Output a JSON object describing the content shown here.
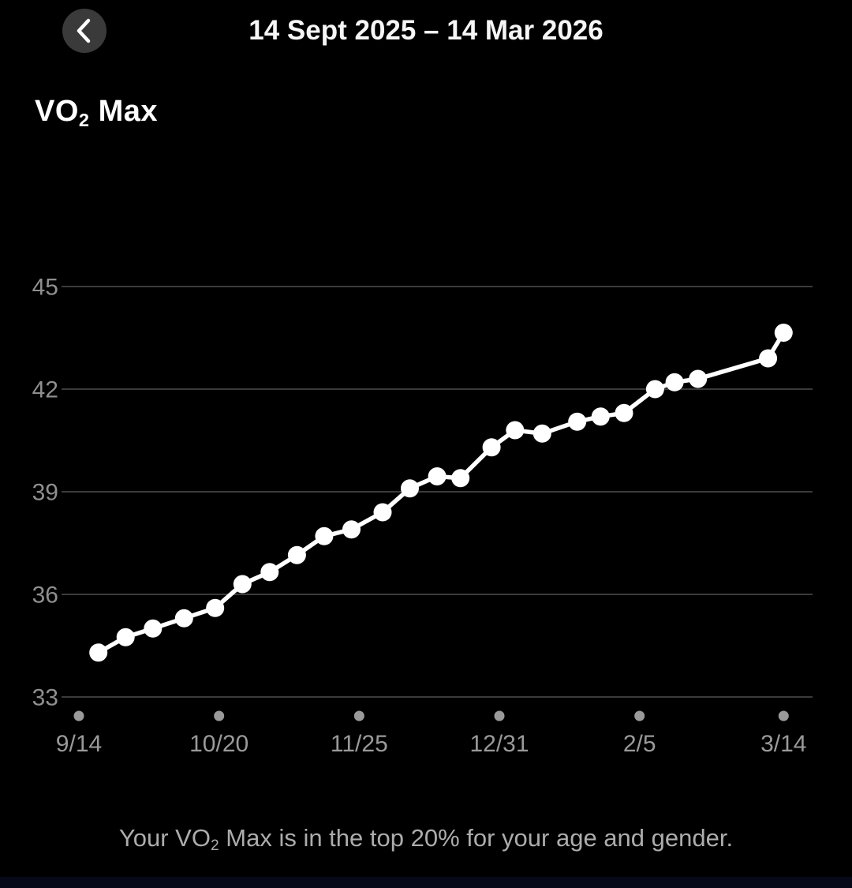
{
  "header": {
    "date_range": "14 Sept 2025 – 14 Mar 2026"
  },
  "title": {
    "pre": "VO",
    "sub": "2",
    "post": " Max"
  },
  "caption": {
    "pre": "Your VO",
    "sub": "2",
    "post": " Max is in the top 20% for your age and gender."
  },
  "colors": {
    "background": "#000000",
    "back_button_bg": "#3a3a3a",
    "header_text": "#f6f6f6",
    "title_text": "#ffffff",
    "gridline": "#3b3b3b",
    "y_label": "#8f8f8f",
    "x_label": "#9a9a9a",
    "x_tick_dot": "#9a9a9a",
    "line": "#ffffff",
    "marker": "#ffffff",
    "caption_text": "#acacac"
  },
  "chart_data": {
    "type": "line",
    "title": "VO2 Max trend",
    "xlabel": "",
    "ylabel": "",
    "grid": true,
    "legend": "none",
    "ylim": [
      33,
      45
    ],
    "y_ticks": [
      33,
      36,
      39,
      42,
      45
    ],
    "x_axis": {
      "tick_labels": [
        "9/14",
        "10/20",
        "11/25",
        "12/31",
        "2/5",
        "3/14"
      ],
      "tick_days": [
        0,
        36,
        72,
        108,
        144,
        181
      ],
      "range_days": [
        0,
        181
      ]
    },
    "points": [
      {
        "x_day": 5,
        "value": 34.3
      },
      {
        "x_day": 12,
        "value": 34.75
      },
      {
        "x_day": 19,
        "value": 35.0
      },
      {
        "x_day": 27,
        "value": 35.3
      },
      {
        "x_day": 35,
        "value": 35.6
      },
      {
        "x_day": 42,
        "value": 36.3
      },
      {
        "x_day": 49,
        "value": 36.65
      },
      {
        "x_day": 56,
        "value": 37.15
      },
      {
        "x_day": 63,
        "value": 37.7
      },
      {
        "x_day": 70,
        "value": 37.9
      },
      {
        "x_day": 78,
        "value": 38.4
      },
      {
        "x_day": 85,
        "value": 39.1
      },
      {
        "x_day": 92,
        "value": 39.45
      },
      {
        "x_day": 98,
        "value": 39.4
      },
      {
        "x_day": 106,
        "value": 40.3
      },
      {
        "x_day": 112,
        "value": 40.8
      },
      {
        "x_day": 119,
        "value": 40.7
      },
      {
        "x_day": 128,
        "value": 41.05
      },
      {
        "x_day": 134,
        "value": 41.2
      },
      {
        "x_day": 140,
        "value": 41.3
      },
      {
        "x_day": 148,
        "value": 42.0
      },
      {
        "x_day": 153,
        "value": 42.2
      },
      {
        "x_day": 159,
        "value": 42.3
      },
      {
        "x_day": 177,
        "value": 42.9
      },
      {
        "x_day": 181,
        "value": 43.65
      }
    ]
  }
}
